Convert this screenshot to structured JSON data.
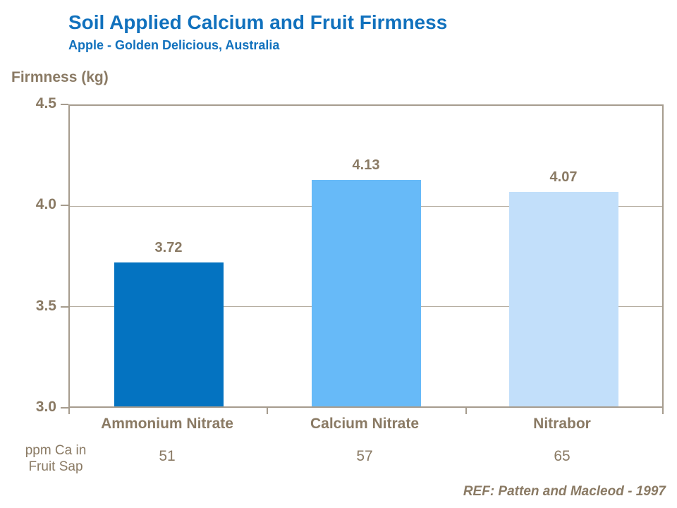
{
  "header": {
    "title": "Soil Applied Calcium and Fruit Firmness",
    "subtitle": "Apple - Golden Delicious, Australia"
  },
  "chart_data": {
    "type": "bar",
    "title": "Soil Applied Calcium and Fruit Firmness",
    "subtitle": "Apple - Golden Delicious, Australia",
    "ylabel": "Firmness (kg)",
    "xlabel": "",
    "ylim": [
      3.0,
      4.5
    ],
    "yticks": [
      3.0,
      3.5,
      4.0,
      4.5
    ],
    "ytick_labels": [
      "3.0",
      "3.5",
      "4.0",
      "4.5"
    ],
    "categories": [
      "Ammonium Nitrate",
      "Calcium Nitrate",
      "Nitrabor"
    ],
    "values": [
      3.72,
      4.13,
      4.07
    ],
    "value_labels": [
      "3.72",
      "4.13",
      "4.07"
    ],
    "bar_colors": [
      "#0473c1",
      "#67baf8",
      "#c2dffa"
    ],
    "grid": true,
    "legend": false,
    "secondary_row": {
      "caption_line1": "ppm Ca in",
      "caption_line2": "Fruit Sap",
      "values": [
        "51",
        "57",
        "65"
      ]
    }
  },
  "footer": {
    "reference": "REF: Patten and Macleod - 1997"
  },
  "colors": {
    "title_blue": "#1171bd",
    "text_brown": "#8a7a64",
    "axis_border": "#a69c8e",
    "gridline": "#b6ada0",
    "background": "#ffffff"
  }
}
